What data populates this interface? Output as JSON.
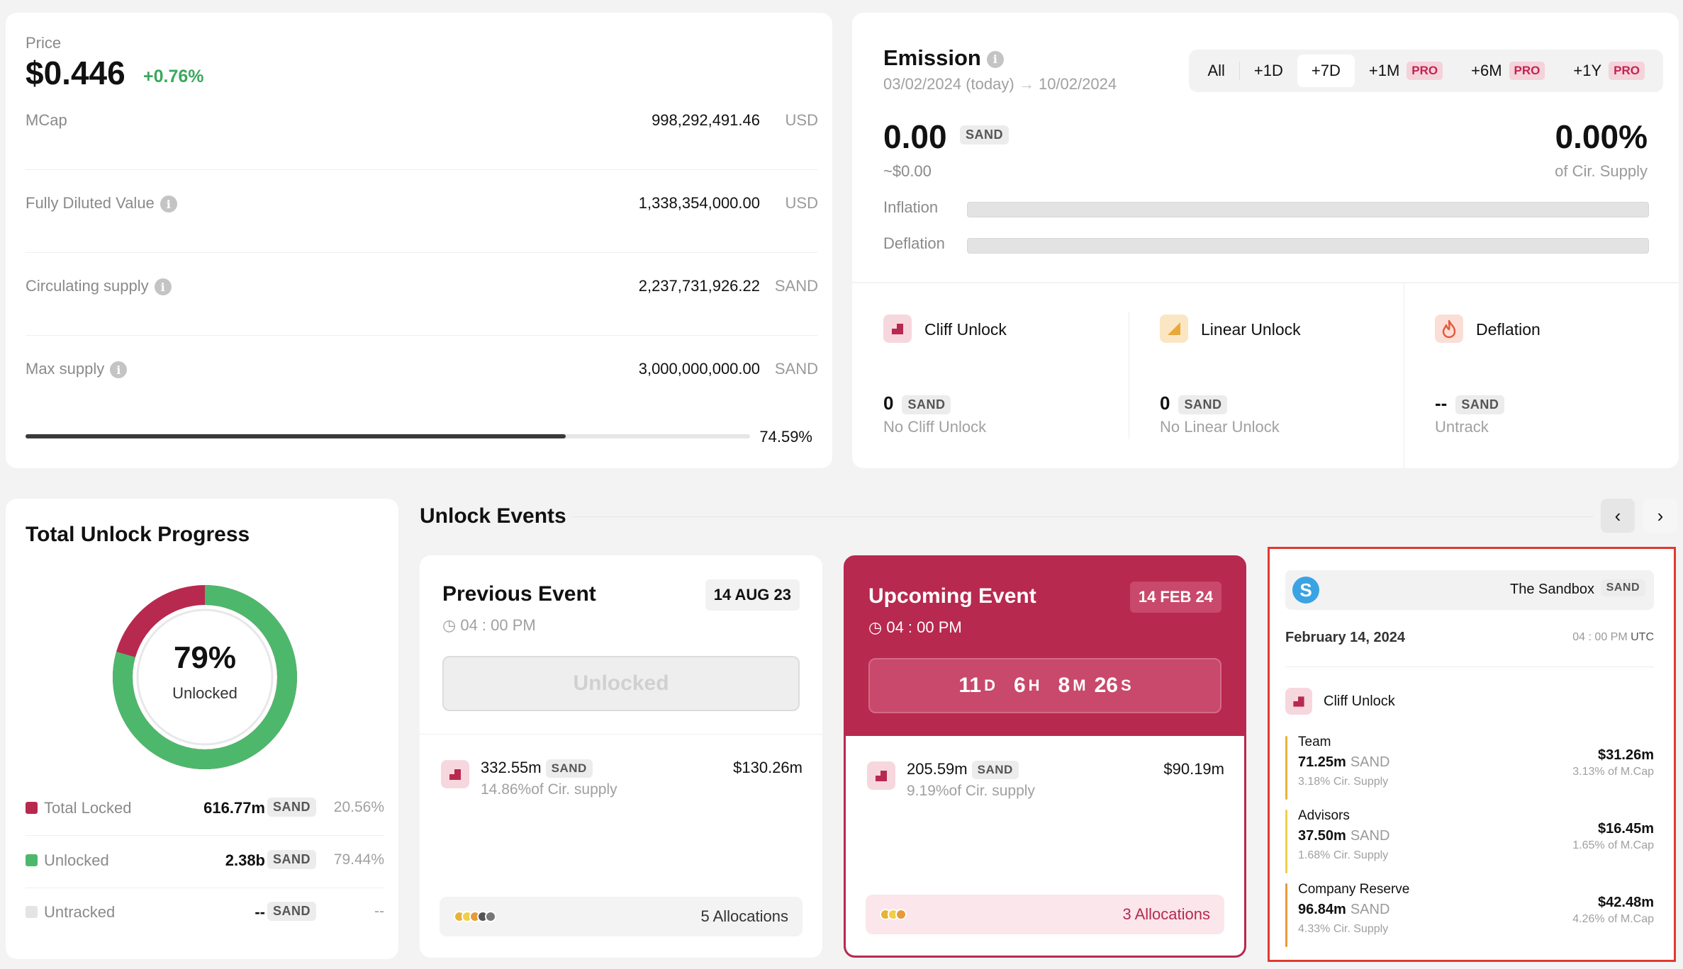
{
  "price_card": {
    "label": "Price",
    "price": "$0.446",
    "change": "+0.76%",
    "rows": [
      {
        "label": "MCap",
        "value": "998,292,491.46",
        "unit": "USD",
        "info": false
      },
      {
        "label": "Fully Diluted Value",
        "value": "1,338,354,000.00",
        "unit": "USD",
        "info": true
      },
      {
        "label": "Circulating supply",
        "value": "2,237,731,926.22",
        "unit": "SAND",
        "info": true
      },
      {
        "label": "Max supply",
        "value": "3,000,000,000.00",
        "unit": "SAND",
        "info": true
      }
    ],
    "supply_percent_label": "74.59%",
    "supply_fraction": 0.7459
  },
  "emission": {
    "title": "Emission",
    "date_from": "03/02/2024 (today)",
    "date_arrow": "→",
    "date_to": "10/02/2024",
    "tabs": [
      {
        "label": "All",
        "pro": ""
      },
      {
        "label": "+1D",
        "pro": ""
      },
      {
        "label": "+7D",
        "pro": ""
      },
      {
        "label": "+1M",
        "pro": "PRO"
      },
      {
        "label": "+6M",
        "pro": "PRO"
      },
      {
        "label": "+1Y",
        "pro": "PRO"
      }
    ],
    "active_tab": "+7D",
    "amount": "0.00",
    "amount_unit": "SAND",
    "amount_usd": "~$0.00",
    "percent": "0.00%",
    "percent_label": "of Cir. Supply",
    "inflation_label": "Inflation",
    "deflation_label": "Deflation"
  },
  "unlock_types": [
    {
      "name": "Cliff Unlock",
      "amount": "0",
      "unit": "SAND",
      "sub": "No Cliff Unlock",
      "icon": "cliff-unlock-icon"
    },
    {
      "name": "Linear Unlock",
      "amount": "0",
      "unit": "SAND",
      "sub": "No Linear Unlock",
      "icon": "linear-unlock-icon"
    },
    {
      "name": "Deflation",
      "amount": "--",
      "unit": "SAND",
      "sub": "Untrack",
      "icon": "flame-icon"
    }
  ],
  "progress": {
    "title": "Total Unlock Progress",
    "percent": "79%",
    "label": "Unlocked",
    "unlocked_fraction": 0.7944,
    "legend": [
      {
        "name": "Total Locked",
        "value": "616.77m",
        "unit": "SAND",
        "pct": "20.56%",
        "color": "#b8294f"
      },
      {
        "name": "Unlocked",
        "value": "2.38b",
        "unit": "SAND",
        "pct": "79.44%",
        "color": "#4db86c"
      },
      {
        "name": "Untracked",
        "value": "--",
        "unit": "SAND",
        "pct": "--",
        "color": "#e4e4e4"
      }
    ]
  },
  "events": {
    "title": "Unlock Events",
    "previous": {
      "title": "Previous Event",
      "date": "14 AUG 23",
      "time": "04 : 00 PM",
      "button": "Unlocked",
      "amount": "332.55m",
      "unit": "SAND",
      "usd": "$130.26m",
      "supply": "14.86%of Cir. supply",
      "allocations": "5 Allocations"
    },
    "upcoming": {
      "title": "Upcoming Event",
      "date": "14 FEB 24",
      "time": "04 : 00 PM",
      "countdown": {
        "d": "11",
        "d_u": "D",
        "h": "6",
        "h_u": "H",
        "m": "8",
        "m_u": "M",
        "s": "26",
        "s_u": "S"
      },
      "amount": "205.59m",
      "unit": "SAND",
      "usd": "$90.19m",
      "supply": "9.19%of Cir. supply",
      "allocations": "3 Allocations"
    }
  },
  "detail": {
    "project": "The Sandbox",
    "symbol": "SAND",
    "logo_letter": "S",
    "date": "February 14, 2024",
    "time": "04 : 00 PM",
    "tz": "UTC",
    "type": "Cliff Unlock",
    "allocations": [
      {
        "name": "Team",
        "amount": "71.25m",
        "unit": "SAND",
        "supply": "3.18% Cir. Supply",
        "usd": "$31.26m",
        "mcap": "3.13% of M.Cap",
        "color": "#e8b33a"
      },
      {
        "name": "Advisors",
        "amount": "37.50m",
        "unit": "SAND",
        "supply": "1.68% Cir. Supply",
        "usd": "$16.45m",
        "mcap": "1.65% of M.Cap",
        "color": "#f0cf4a"
      },
      {
        "name": "Company Reserve",
        "amount": "96.84m",
        "unit": "SAND",
        "supply": "4.33% Cir. Supply",
        "usd": "$42.48m",
        "mcap": "4.26% of M.Cap",
        "color": "#e89a3a"
      }
    ]
  }
}
